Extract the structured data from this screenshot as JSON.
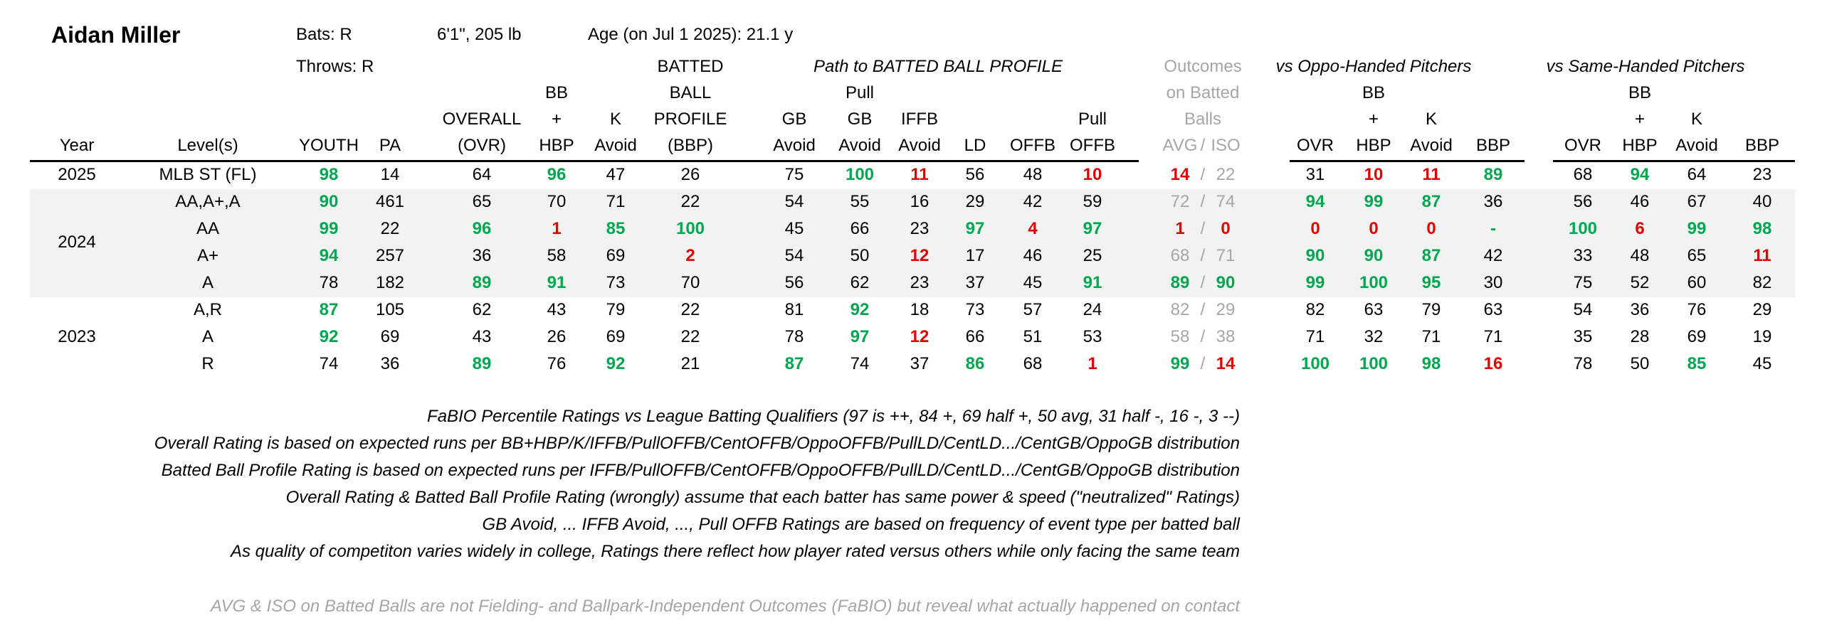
{
  "player": {
    "name": "Aidan Miller",
    "bats": "Bats: R",
    "throws": "Throws: R",
    "size": "6'1\", 205 lb",
    "age": "Age (on Jul 1 2025): 21.1 y"
  },
  "group_headers": {
    "path": "Path to BATTED BALL PROFILE",
    "outcomes": [
      "Outcomes",
      "on Batted",
      "Balls"
    ],
    "oppo": "vs Oppo-Handed Pitchers",
    "same": "vs Same-Handed Pitchers"
  },
  "columns": [
    {
      "key": "year",
      "lines": [
        "Year"
      ]
    },
    {
      "key": "level",
      "lines": [
        "Level(s)"
      ]
    },
    {
      "key": "youth",
      "lines": [
        "YOUTH"
      ]
    },
    {
      "key": "pa",
      "lines": [
        "PA"
      ]
    },
    {
      "key": "ovr",
      "lines": [
        "OVERALL",
        "(OVR)"
      ]
    },
    {
      "key": "bbhbp",
      "lines": [
        "BB",
        "+",
        "HBP"
      ]
    },
    {
      "key": "kavoid",
      "lines": [
        "K",
        "Avoid"
      ]
    },
    {
      "key": "bbp",
      "lines": [
        "BATTED",
        "BALL",
        "PROFILE",
        "(BBP)"
      ]
    },
    {
      "key": "gbavoid",
      "lines": [
        "GB",
        "Avoid"
      ]
    },
    {
      "key": "pullgb",
      "lines": [
        "Pull",
        "GB",
        "Avoid"
      ]
    },
    {
      "key": "iffb",
      "lines": [
        "IFFB",
        "Avoid"
      ]
    },
    {
      "key": "ld",
      "lines": [
        "LD"
      ]
    },
    {
      "key": "offb",
      "lines": [
        "OFFB"
      ]
    },
    {
      "key": "pulloffb",
      "lines": [
        "Pull",
        "OFFB"
      ]
    },
    {
      "key": "avgiso",
      "lines": [
        "AVG",
        "/",
        "ISO"
      ]
    },
    {
      "key": "o_ovr",
      "lines": [
        "OVR"
      ]
    },
    {
      "key": "o_bb",
      "lines": [
        "BB",
        "+",
        "HBP"
      ]
    },
    {
      "key": "o_k",
      "lines": [
        "K",
        "Avoid"
      ]
    },
    {
      "key": "o_bbp",
      "lines": [
        "BBP"
      ]
    },
    {
      "key": "s_ovr",
      "lines": [
        "OVR"
      ]
    },
    {
      "key": "s_bb",
      "lines": [
        "BB",
        "+",
        "HBP"
      ]
    },
    {
      "key": "s_k",
      "lines": [
        "K",
        "Avoid"
      ]
    },
    {
      "key": "s_bbp",
      "lines": [
        "BBP"
      ]
    }
  ],
  "rows": [
    {
      "year": "2025",
      "level": "MLB ST (FL)",
      "band": false,
      "cells": [
        [
          "98",
          "g"
        ],
        [
          "14",
          ""
        ],
        [
          "64",
          ""
        ],
        [
          "96",
          "g"
        ],
        [
          "47",
          ""
        ],
        [
          "26",
          ""
        ],
        [
          "75",
          ""
        ],
        [
          "100",
          "g"
        ],
        [
          "11",
          "r"
        ],
        [
          "56",
          ""
        ],
        [
          "48",
          ""
        ],
        [
          "10",
          "r"
        ],
        [
          "14",
          "r"
        ],
        [
          "22",
          "d"
        ],
        [
          "31",
          ""
        ],
        [
          "10",
          "r"
        ],
        [
          "11",
          "r"
        ],
        [
          "89",
          "g"
        ],
        [
          "68",
          ""
        ],
        [
          "94",
          "g"
        ],
        [
          "64",
          ""
        ],
        [
          "23",
          ""
        ]
      ]
    },
    {
      "year": "",
      "level": "AA,A+,A",
      "band": true,
      "cells": [
        [
          "90",
          "g"
        ],
        [
          "461",
          ""
        ],
        [
          "65",
          ""
        ],
        [
          "70",
          ""
        ],
        [
          "71",
          ""
        ],
        [
          "22",
          ""
        ],
        [
          "54",
          ""
        ],
        [
          "55",
          ""
        ],
        [
          "16",
          ""
        ],
        [
          "29",
          ""
        ],
        [
          "42",
          ""
        ],
        [
          "59",
          ""
        ],
        [
          "72",
          "d"
        ],
        [
          "74",
          "d"
        ],
        [
          "94",
          "g"
        ],
        [
          "99",
          "g"
        ],
        [
          "87",
          "g"
        ],
        [
          "36",
          ""
        ],
        [
          "56",
          ""
        ],
        [
          "46",
          ""
        ],
        [
          "67",
          ""
        ],
        [
          "40",
          ""
        ]
      ]
    },
    {
      "year": "",
      "level": "AA",
      "band": true,
      "cells": [
        [
          "99",
          "g"
        ],
        [
          "22",
          ""
        ],
        [
          "96",
          "g"
        ],
        [
          "1",
          "r"
        ],
        [
          "85",
          "g"
        ],
        [
          "100",
          "g"
        ],
        [
          "45",
          ""
        ],
        [
          "66",
          ""
        ],
        [
          "23",
          ""
        ],
        [
          "97",
          "g"
        ],
        [
          "4",
          "r"
        ],
        [
          "97",
          "g"
        ],
        [
          "1",
          "r"
        ],
        [
          "0",
          "r"
        ],
        [
          "0",
          "r"
        ],
        [
          "0",
          "r"
        ],
        [
          "0",
          "r"
        ],
        [
          "-",
          "g"
        ],
        [
          "100",
          "g"
        ],
        [
          "6",
          "r"
        ],
        [
          "99",
          "g"
        ],
        [
          "98",
          "g"
        ]
      ]
    },
    {
      "year": "2024",
      "level": "A+",
      "band": true,
      "cells": [
        [
          "94",
          "g"
        ],
        [
          "257",
          ""
        ],
        [
          "36",
          ""
        ],
        [
          "58",
          ""
        ],
        [
          "69",
          ""
        ],
        [
          "2",
          "r"
        ],
        [
          "54",
          ""
        ],
        [
          "50",
          ""
        ],
        [
          "12",
          "r"
        ],
        [
          "17",
          ""
        ],
        [
          "46",
          ""
        ],
        [
          "25",
          ""
        ],
        [
          "68",
          "d"
        ],
        [
          "71",
          "d"
        ],
        [
          "90",
          "g"
        ],
        [
          "90",
          "g"
        ],
        [
          "87",
          "g"
        ],
        [
          "42",
          ""
        ],
        [
          "33",
          ""
        ],
        [
          "48",
          ""
        ],
        [
          "65",
          ""
        ],
        [
          "11",
          "r"
        ]
      ]
    },
    {
      "year": "",
      "level": "A",
      "band": true,
      "cells": [
        [
          "78",
          ""
        ],
        [
          "182",
          ""
        ],
        [
          "89",
          "g"
        ],
        [
          "91",
          "g"
        ],
        [
          "73",
          ""
        ],
        [
          "70",
          ""
        ],
        [
          "56",
          ""
        ],
        [
          "62",
          ""
        ],
        [
          "23",
          ""
        ],
        [
          "37",
          ""
        ],
        [
          "45",
          ""
        ],
        [
          "91",
          "g"
        ],
        [
          "89",
          "g"
        ],
        [
          "90",
          "g"
        ],
        [
          "99",
          "g"
        ],
        [
          "100",
          "g"
        ],
        [
          "95",
          "g"
        ],
        [
          "30",
          ""
        ],
        [
          "75",
          ""
        ],
        [
          "52",
          ""
        ],
        [
          "60",
          ""
        ],
        [
          "82",
          ""
        ]
      ]
    },
    {
      "year": "",
      "level": "A,R",
      "band": false,
      "cells": [
        [
          "87",
          "g"
        ],
        [
          "105",
          ""
        ],
        [
          "62",
          ""
        ],
        [
          "43",
          ""
        ],
        [
          "79",
          ""
        ],
        [
          "22",
          ""
        ],
        [
          "81",
          ""
        ],
        [
          "92",
          "g"
        ],
        [
          "18",
          ""
        ],
        [
          "73",
          ""
        ],
        [
          "57",
          ""
        ],
        [
          "24",
          ""
        ],
        [
          "82",
          "d"
        ],
        [
          "29",
          "d"
        ],
        [
          "82",
          ""
        ],
        [
          "63",
          ""
        ],
        [
          "79",
          ""
        ],
        [
          "63",
          ""
        ],
        [
          "54",
          ""
        ],
        [
          "36",
          ""
        ],
        [
          "76",
          ""
        ],
        [
          "29",
          ""
        ]
      ]
    },
    {
      "year": "2023",
      "level": "A",
      "band": false,
      "cells": [
        [
          "92",
          "g"
        ],
        [
          "69",
          ""
        ],
        [
          "43",
          ""
        ],
        [
          "26",
          ""
        ],
        [
          "69",
          ""
        ],
        [
          "22",
          ""
        ],
        [
          "78",
          ""
        ],
        [
          "97",
          "g"
        ],
        [
          "12",
          "r"
        ],
        [
          "66",
          ""
        ],
        [
          "51",
          ""
        ],
        [
          "53",
          ""
        ],
        [
          "58",
          "d"
        ],
        [
          "38",
          "d"
        ],
        [
          "71",
          ""
        ],
        [
          "32",
          ""
        ],
        [
          "71",
          ""
        ],
        [
          "71",
          ""
        ],
        [
          "35",
          ""
        ],
        [
          "28",
          ""
        ],
        [
          "69",
          ""
        ],
        [
          "19",
          ""
        ]
      ]
    },
    {
      "year": "",
      "level": "R",
      "band": false,
      "cells": [
        [
          "74",
          ""
        ],
        [
          "36",
          ""
        ],
        [
          "89",
          "g"
        ],
        [
          "76",
          ""
        ],
        [
          "92",
          "g"
        ],
        [
          "21",
          ""
        ],
        [
          "87",
          "g"
        ],
        [
          "74",
          ""
        ],
        [
          "37",
          ""
        ],
        [
          "86",
          "g"
        ],
        [
          "68",
          ""
        ],
        [
          "1",
          "r"
        ],
        [
          "99",
          "g"
        ],
        [
          "14",
          "r"
        ],
        [
          "100",
          "g"
        ],
        [
          "100",
          "g"
        ],
        [
          "98",
          "g"
        ],
        [
          "16",
          "r"
        ],
        [
          "78",
          ""
        ],
        [
          "50",
          ""
        ],
        [
          "85",
          "g"
        ],
        [
          "45",
          ""
        ]
      ]
    }
  ],
  "notes": [
    "FaBIO Percentile Ratings vs League Batting Qualifiers (97 is ++, 84 +, 69 half +, 50 avg, 31 half -, 16 -, 3 --)",
    "Overall Rating is based on expected runs per BB+HBP/K/IFFB/PullOFFB/CentOFFB/OppoOFFB/PullLD/CentLD.../CentGB/OppoGB distribution",
    "Batted Ball Profile Rating is based on expected runs per IFFB/PullOFFB/CentOFFB/OppoOFFB/PullLD/CentLD.../CentGB/OppoGB distribution",
    "Overall Rating & Batted Ball Profile Rating (wrongly) assume that each batter has same power & speed (\"neutralized\" Ratings)",
    "GB Avoid, ... IFFB Avoid, ..., Pull OFFB Ratings are based on frequency of event type per batted ball",
    "As quality of competiton varies widely in college, Ratings there reflect how player rated versus others while only facing the same team"
  ],
  "footnote": "AVG & ISO on Batted Balls are not Fielding- and Ballpark-Independent Outcomes (FaBIO) but reveal what actually happened on contact",
  "colors": {
    "green": "#00a650",
    "red": "#e00000",
    "gray": "#a6a6a6",
    "band": "#f2f2f2"
  }
}
